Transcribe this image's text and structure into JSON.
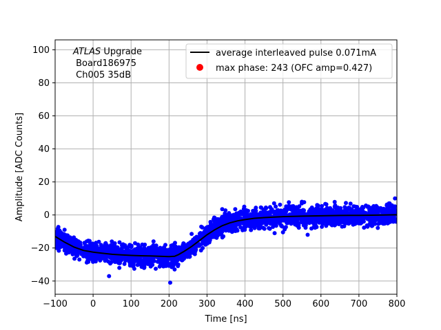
{
  "chart_data": {
    "type": "scatter",
    "xlabel": "Time [ns]",
    "ylabel": "Amplitude [ADC Counts]",
    "xlim": [
      -100,
      800
    ],
    "ylim": [
      -48,
      106
    ],
    "grid": true,
    "legend_position": "top-right",
    "x_ticks": [
      -100,
      0,
      100,
      200,
      300,
      400,
      500,
      600,
      700,
      800
    ],
    "x_tick_labels": [
      "−100",
      "0",
      "100",
      "200",
      "300",
      "400",
      "500",
      "600",
      "700",
      "800"
    ],
    "y_ticks": [
      -40,
      -20,
      0,
      20,
      40,
      60,
      80,
      100
    ],
    "y_tick_labels": [
      "−40",
      "−20",
      "0",
      "20",
      "40",
      "60",
      "80",
      "100"
    ],
    "annotation": {
      "line1_italic": "ATLAS",
      "line1_rest": " Upgrade",
      "line2": " Board186975",
      "line3": " Ch005 35dB"
    },
    "series": [
      {
        "name": "average interleaved pulse 0.071mA",
        "kind": "line",
        "color": "#000000",
        "x": [
          -100,
          -75,
          -50,
          -25,
          0,
          25,
          50,
          75,
          100,
          125,
          150,
          175,
          200,
          215,
          225,
          240,
          260,
          280,
          300,
          320,
          340,
          360,
          380,
          400,
          425,
          450,
          500,
          550,
          600,
          650,
          700,
          750,
          800
        ],
        "y": [
          -13,
          -16.5,
          -19.5,
          -21.5,
          -22.5,
          -23.2,
          -23.8,
          -24.2,
          -24.5,
          -24.7,
          -24.8,
          -25.0,
          -25.2,
          -25.0,
          -24.0,
          -22.0,
          -19.0,
          -15.5,
          -12.0,
          -9.0,
          -6.5,
          -4.8,
          -3.6,
          -2.8,
          -2.0,
          -1.6,
          -1.0,
          -0.7,
          -0.5,
          -0.3,
          -0.2,
          -0.1,
          0.1
        ]
      },
      {
        "name": "samples",
        "kind": "scatter",
        "color": "#0000ff",
        "band_halfwidth": 5.5,
        "outliers": [
          {
            "x": 42,
            "y": -37
          },
          {
            "x": 203,
            "y": -41
          },
          {
            "x": 340,
            "y": 3.5
          },
          {
            "x": 398,
            "y": 5
          },
          {
            "x": 455,
            "y": 4.5
          },
          {
            "x": 478,
            "y": -11
          },
          {
            "x": 500,
            "y": -10.5
          },
          {
            "x": 565,
            "y": -12
          },
          {
            "x": 590,
            "y": 6
          },
          {
            "x": 795,
            "y": 10
          }
        ]
      },
      {
        "name": "max phase: 243 (OFC amp=0.427)",
        "kind": "marker",
        "color": "#ff0000",
        "points": []
      }
    ]
  }
}
